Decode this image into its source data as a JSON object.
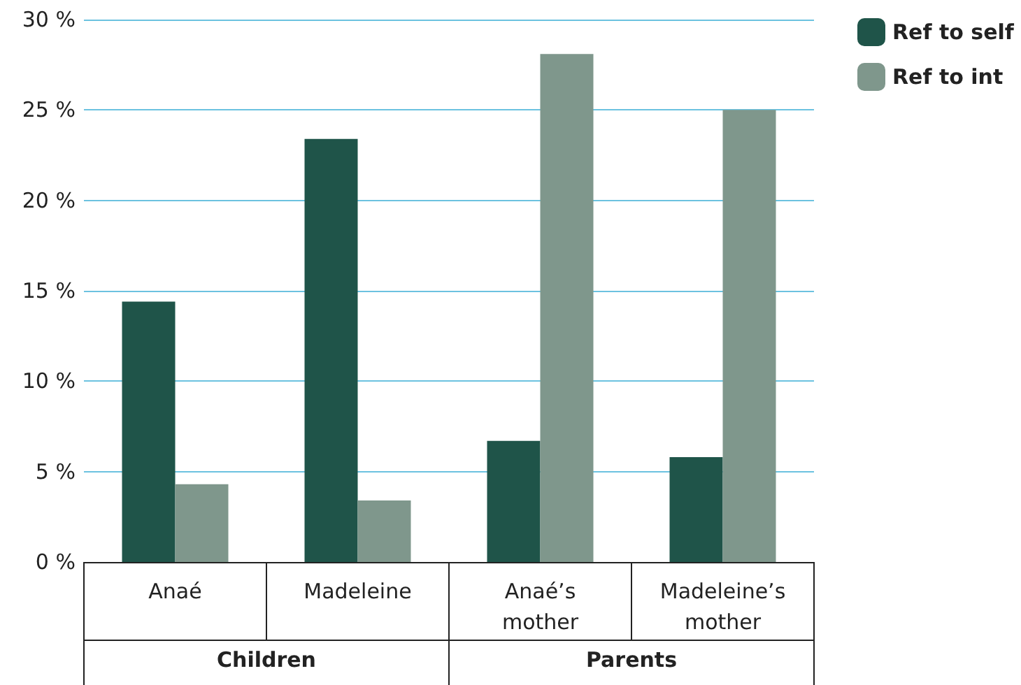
{
  "chart_data": {
    "type": "bar",
    "categories": [
      "Anaé",
      "Madeleine",
      "Anaé’s\nmother",
      "Madeleine’s\nmother"
    ],
    "series": [
      {
        "name": "Ref to self",
        "color": "#1f5449",
        "values": [
          14.4,
          23.4,
          6.7,
          5.8
        ]
      },
      {
        "name": "Ref to int",
        "color": "#7f978c",
        "values": [
          4.3,
          3.4,
          28.1,
          25.0
        ]
      }
    ],
    "ylim": [
      0,
      30
    ],
    "yticks": [
      {
        "value": 0,
        "label": "0 %"
      },
      {
        "value": 5,
        "label": "5 %"
      },
      {
        "value": 10,
        "label": "10 %"
      },
      {
        "value": 15,
        "label": "15 %"
      },
      {
        "value": 20,
        "label": "20 %"
      },
      {
        "value": 25,
        "label": "25 %"
      },
      {
        "value": 30,
        "label": "30 %"
      }
    ],
    "grid": "y",
    "legend": "top right",
    "marker": "square",
    "annotations": [
      "Children",
      "Parents"
    ]
  }
}
